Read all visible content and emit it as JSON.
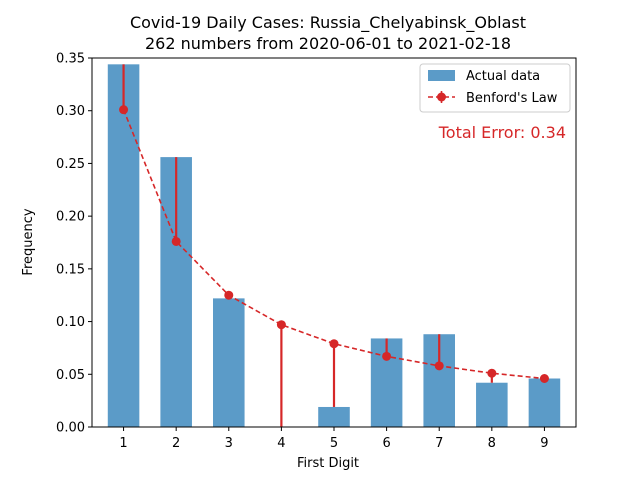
{
  "chart_data": {
    "type": "bar",
    "title": "Covid-19 Daily Cases: Russia_Chelyabinsk_Oblast",
    "subtitle": "262 numbers from 2020-06-01 to 2021-02-18",
    "xlabel": "First Digit",
    "ylabel": "Frequency",
    "categories": [
      "1",
      "2",
      "3",
      "4",
      "5",
      "6",
      "7",
      "8",
      "9"
    ],
    "ylim": [
      0,
      0.35
    ],
    "yticks": [
      "0.00",
      "0.05",
      "0.10",
      "0.15",
      "0.20",
      "0.25",
      "0.30",
      "0.35"
    ],
    "series": [
      {
        "name": "Actual data",
        "type": "bar",
        "color": "#5b9bc8",
        "values": [
          0.344,
          0.256,
          0.122,
          0.0,
          0.019,
          0.084,
          0.088,
          0.042,
          0.046
        ]
      },
      {
        "name": "Benford's Law",
        "type": "line",
        "color": "#d62728",
        "values": [
          0.301,
          0.176,
          0.125,
          0.097,
          0.079,
          0.067,
          0.058,
          0.051,
          0.046
        ]
      }
    ],
    "annotation": "Total Error: 0.34",
    "annotation_color": "#d62728",
    "legend_position": "top-right",
    "grid": false
  }
}
